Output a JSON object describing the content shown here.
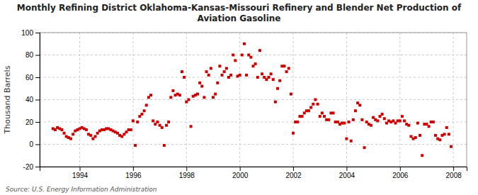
{
  "chart_data": {
    "type": "scatter",
    "title": "Monthly Refining District Oklahoma-Kansas-Missouri Refinery and Blender Net Production of\nAviation Gasoline",
    "ylabel": "Thousand Barrels",
    "annotations": [
      "Source: U.S. Energy Information Administration"
    ],
    "color": "#cc0000",
    "marker": "square",
    "grid": true,
    "xlim": [
      1992.5,
      2008.5
    ],
    "ylim": [
      -20,
      100
    ],
    "xticks": [
      1994,
      1996,
      1998,
      2000,
      2002,
      2004,
      2006,
      2008
    ],
    "yticks": [
      -20,
      0,
      20,
      40,
      60,
      80,
      100
    ],
    "x": [
      1993.0,
      1993.083,
      1993.167,
      1993.25,
      1993.333,
      1993.417,
      1993.5,
      1993.583,
      1993.667,
      1993.75,
      1993.833,
      1993.917,
      1994.0,
      1994.083,
      1994.167,
      1994.25,
      1994.333,
      1994.417,
      1994.5,
      1994.583,
      1994.667,
      1994.75,
      1994.833,
      1994.917,
      1995.0,
      1995.083,
      1995.167,
      1995.25,
      1995.333,
      1995.417,
      1995.5,
      1995.583,
      1995.667,
      1995.75,
      1995.833,
      1995.917,
      1996.0,
      1996.083,
      1996.167,
      1996.25,
      1996.333,
      1996.417,
      1996.5,
      1996.583,
      1996.667,
      1996.75,
      1996.833,
      1996.917,
      1997.0,
      1997.083,
      1997.167,
      1997.25,
      1997.333,
      1997.417,
      1997.5,
      1997.583,
      1997.667,
      1997.75,
      1997.833,
      1997.917,
      1998.0,
      1998.083,
      1998.167,
      1998.25,
      1998.333,
      1998.417,
      1998.5,
      1998.583,
      1998.667,
      1998.75,
      1998.833,
      1998.917,
      1999.0,
      1999.083,
      1999.167,
      1999.25,
      1999.333,
      1999.417,
      1999.5,
      1999.583,
      1999.667,
      1999.75,
      1999.833,
      1999.917,
      2000.0,
      2000.083,
      2000.167,
      2000.25,
      2000.333,
      2000.417,
      2000.5,
      2000.583,
      2000.667,
      2000.75,
      2000.833,
      2000.917,
      2001.0,
      2001.083,
      2001.167,
      2001.25,
      2001.333,
      2001.417,
      2001.5,
      2001.583,
      2001.667,
      2001.75,
      2001.833,
      2001.917,
      2002.0,
      2002.083,
      2002.167,
      2002.25,
      2002.333,
      2002.417,
      2002.5,
      2002.583,
      2002.667,
      2002.75,
      2002.833,
      2002.917,
      2003.0,
      2003.083,
      2003.167,
      2003.25,
      2003.333,
      2003.417,
      2003.5,
      2003.583,
      2003.667,
      2003.75,
      2003.833,
      2003.917,
      2004.0,
      2004.083,
      2004.167,
      2004.25,
      2004.333,
      2004.417,
      2004.5,
      2004.583,
      2004.667,
      2004.75,
      2004.833,
      2004.917,
      2005.0,
      2005.083,
      2005.167,
      2005.25,
      2005.333,
      2005.417,
      2005.5,
      2005.583,
      2005.667,
      2005.75,
      2005.833,
      2005.917,
      2006.0,
      2006.083,
      2006.167,
      2006.25,
      2006.333,
      2006.417,
      2006.5,
      2006.583,
      2006.667,
      2006.75,
      2006.833,
      2006.917,
      2007.0,
      2007.083,
      2007.167,
      2007.25,
      2007.333,
      2007.417,
      2007.5,
      2007.583,
      2007.667,
      2007.75,
      2007.833,
      2007.917
    ],
    "values": [
      14,
      13,
      15,
      14,
      13,
      10,
      7,
      6,
      5,
      9,
      12,
      13,
      14,
      15,
      14,
      13,
      9,
      8,
      5,
      7,
      10,
      12,
      13,
      13,
      14,
      14,
      13,
      12,
      11,
      10,
      8,
      7,
      9,
      11,
      13,
      13,
      21,
      -1,
      20,
      25,
      27,
      30,
      35,
      42,
      44,
      21,
      18,
      20,
      17,
      15,
      -1,
      17,
      20,
      42,
      48,
      44,
      45,
      44,
      65,
      60,
      38,
      40,
      16,
      43,
      44,
      45,
      55,
      52,
      42,
      65,
      62,
      68,
      42,
      45,
      55,
      70,
      62,
      65,
      68,
      60,
      62,
      80,
      75,
      61,
      62,
      80,
      90,
      62,
      80,
      78,
      70,
      72,
      60,
      84,
      63,
      60,
      58,
      60,
      63,
      58,
      38,
      50,
      57,
      70,
      70,
      65,
      68,
      45,
      10,
      20,
      20,
      25,
      25,
      28,
      30,
      30,
      33,
      36,
      40,
      36,
      25,
      28,
      25,
      22,
      22,
      28,
      28,
      20,
      20,
      18,
      19,
      19,
      5,
      20,
      3,
      22,
      30,
      37,
      35,
      22,
      -3,
      20,
      18,
      17,
      24,
      22,
      21,
      25,
      27,
      23,
      19,
      21,
      20,
      21,
      19,
      21,
      21,
      25,
      21,
      18,
      17,
      7,
      5,
      6,
      19,
      8,
      -10,
      18,
      18,
      16,
      20,
      20,
      8,
      5,
      4,
      8,
      9,
      15,
      9,
      -2
    ]
  }
}
